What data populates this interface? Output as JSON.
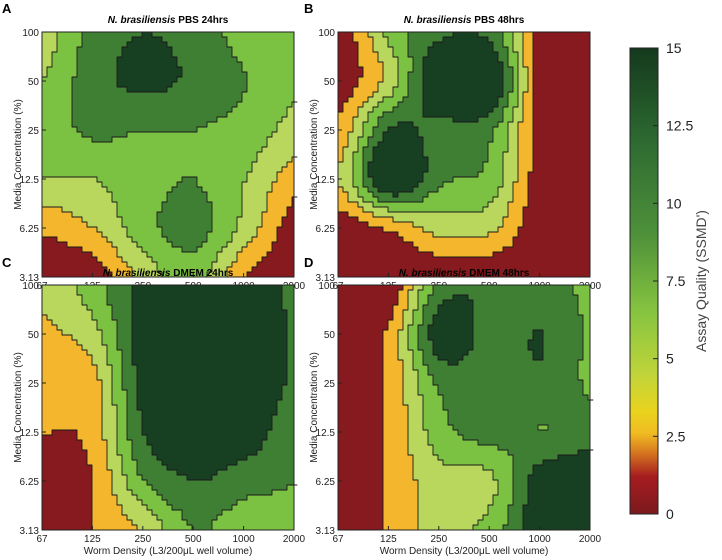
{
  "chart_data": [
    {
      "type": "heatmap",
      "panel_letter": "A",
      "title_italic": "N. brasiliensis",
      "title_rest": "PBS 24hrs",
      "xlabel": "Worm Density (L3/200μL well volume)",
      "ylabel": "Media Concentration (%)",
      "x_ticks": [
        "67",
        "125",
        "250",
        "500",
        "1000",
        "2000"
      ],
      "y_ticks": [
        "100",
        "50",
        "25",
        "12.5",
        "6.25",
        "3.13"
      ],
      "z_range": [
        0,
        15
      ],
      "z_approx": [
        [
          6.0,
          11.0,
          12.5,
          11.5,
          9.0,
          9.0
        ],
        [
          7.5,
          11.5,
          13.0,
          12.0,
          10.0,
          8.0
        ],
        [
          8.5,
          10.5,
          10.0,
          10.0,
          9.0,
          6.5
        ],
        [
          7.5,
          7.5,
          9.0,
          10.0,
          7.5,
          3.5
        ],
        [
          3.0,
          5.0,
          9.0,
          11.0,
          6.5,
          1.0
        ],
        [
          0.5,
          1.0,
          6.0,
          8.5,
          2.5,
          0.5
        ]
      ]
    },
    {
      "type": "heatmap",
      "panel_letter": "B",
      "title_italic": "N. brasiliensis",
      "title_rest": "PBS 48hrs",
      "xlabel": "Worm Density (L3/200μL well volume)",
      "ylabel": "Media Concentration (%)",
      "x_ticks": [
        "67",
        "125",
        "250",
        "500",
        "1000",
        "2000"
      ],
      "y_ticks": [
        "100",
        "50",
        "25",
        "12.5",
        "6.25",
        "3.13"
      ],
      "z_range": [
        0,
        15
      ],
      "z_approx": [
        [
          0.5,
          8.0,
          12.0,
          11.5,
          1.0,
          0.5
        ],
        [
          1.0,
          6.0,
          15.5,
          15.5,
          1.0,
          0.5
        ],
        [
          3.0,
          12.5,
          11.5,
          10.5,
          1.0,
          0.5
        ],
        [
          5.0,
          15.5,
          10.5,
          9.0,
          1.0,
          0.5
        ],
        [
          1.0,
          3.0,
          6.0,
          5.5,
          0.5,
          0.5
        ],
        [
          0.5,
          0.5,
          0.5,
          0.5,
          0.5,
          0.5
        ]
      ]
    },
    {
      "type": "heatmap",
      "panel_letter": "C",
      "title_italic": "N. brasiliensis",
      "title_rest": "DMEM 24hrs",
      "xlabel": "Worm Density (L3/200μL well volume)",
      "ylabel": "Media Concentration (%)",
      "x_ticks": [
        "67",
        "125",
        "250",
        "500",
        "1000",
        "2000"
      ],
      "y_ticks": [
        "100",
        "50",
        "25",
        "12.5",
        "6.25",
        "3.13"
      ],
      "z_range": [
        0,
        15
      ],
      "z_approx": [
        [
          5.5,
          9.0,
          13.5,
          14.0,
          14.0,
          12.0
        ],
        [
          4.5,
          6.5,
          14.0,
          15.0,
          15.0,
          12.0
        ],
        [
          3.0,
          4.0,
          13.5,
          14.0,
          14.5,
          12.0
        ],
        [
          2.5,
          3.5,
          12.5,
          14.0,
          14.0,
          10.5
        ],
        [
          1.0,
          2.5,
          10.0,
          12.5,
          11.0,
          10.0
        ],
        [
          0.5,
          2.5,
          5.5,
          10.0,
          8.5,
          9.5
        ]
      ]
    },
    {
      "type": "heatmap",
      "panel_letter": "D",
      "title_italic": "N. brasiliensis",
      "title_rest": "DMEM 48hrs",
      "xlabel": "Worm Density (L3/200μL well volume)",
      "ylabel": "Media Concentration (%)",
      "x_ticks": [
        "67",
        "125",
        "250",
        "500",
        "1000",
        "2000"
      ],
      "y_ticks": [
        "100",
        "50",
        "25",
        "12.5",
        "6.25",
        "3.13"
      ],
      "z_range": [
        0,
        15
      ],
      "z_approx": [
        [
          0.5,
          0.5,
          11.0,
          12.0,
          11.0,
          9.5
        ],
        [
          0.5,
          3.0,
          14.0,
          11.5,
          12.5,
          9.5
        ],
        [
          1.0,
          3.0,
          10.5,
          11.0,
          12.0,
          9.5
        ],
        [
          1.5,
          3.0,
          9.0,
          11.0,
          10.0,
          11.5
        ],
        [
          0.5,
          3.0,
          6.5,
          7.0,
          14.0,
          14.5
        ],
        [
          0.5,
          3.0,
          6.5,
          8.5,
          14.5,
          14.5
        ]
      ]
    }
  ],
  "colorbar": {
    "label": "Assay Quality (SSMD')",
    "ticks": [
      "0",
      "2.5",
      "5",
      "7.5",
      "10",
      "12.5",
      "15"
    ],
    "range": [
      0,
      15
    ],
    "stops": [
      {
        "v": 0,
        "color": "#7b1a1e"
      },
      {
        "v": 1.2,
        "color": "#a61c1f"
      },
      {
        "v": 2.0,
        "color": "#d77a1f"
      },
      {
        "v": 2.6,
        "color": "#f0bb22"
      },
      {
        "v": 3.3,
        "color": "#e9d31e"
      },
      {
        "v": 4.5,
        "color": "#bfd43a"
      },
      {
        "v": 6.5,
        "color": "#86c440"
      },
      {
        "v": 9.0,
        "color": "#4e913a"
      },
      {
        "v": 12.0,
        "color": "#2d6a31"
      },
      {
        "v": 15,
        "color": "#14391d"
      }
    ],
    "levels": [
      {
        "v": 0,
        "color": "#861a1e"
      },
      {
        "v": 2.5,
        "color": "#f3b62c"
      },
      {
        "v": 5,
        "color": "#b9d75d"
      },
      {
        "v": 7.5,
        "color": "#7cc242"
      },
      {
        "v": 10,
        "color": "#3f7f34"
      },
      {
        "v": 12.5,
        "color": "#173f22"
      }
    ]
  }
}
